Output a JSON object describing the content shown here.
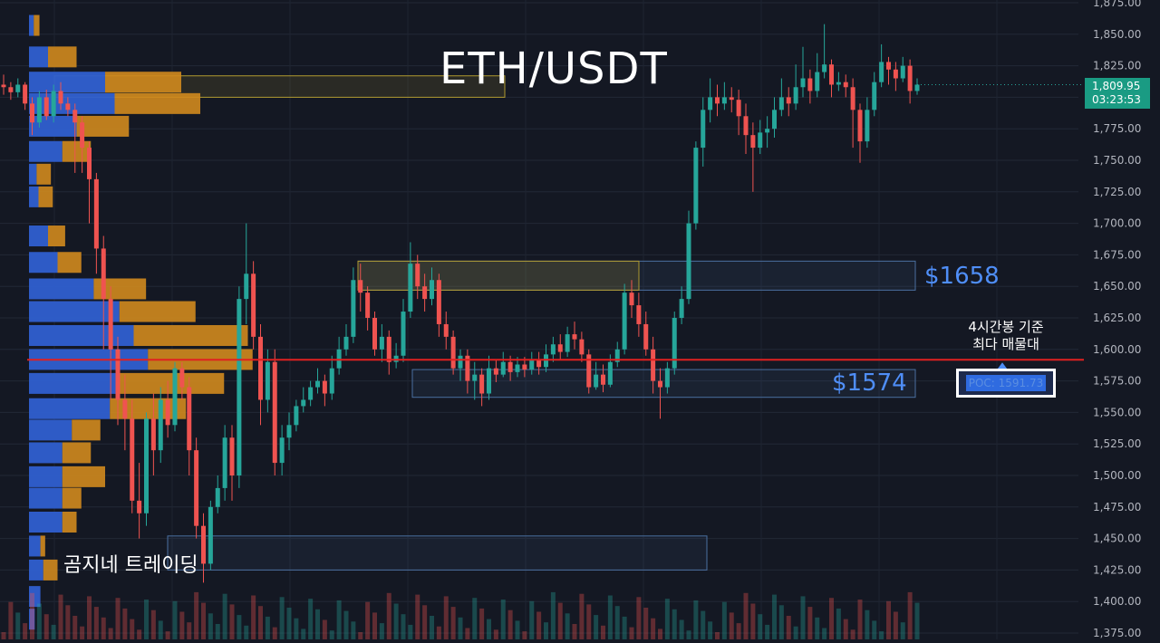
{
  "title": "ETH/USDT",
  "levels": {
    "upper_label": "$1658",
    "lower_label": "$1574"
  },
  "poc": {
    "note_line1": "4시간봉 기준",
    "note_line2": "최다 매물대",
    "label": "POC: 1591.73",
    "value": 1591.73
  },
  "watermark": "곰지네 트레이딩",
  "price_tag": {
    "price": "1,809.95",
    "countdown": "03:23:53"
  },
  "colors": {
    "background": "#141823",
    "up": "#26a69a",
    "down": "#ef5350",
    "poc_line": "#e02020",
    "profile_blue": "#2f5fd0",
    "profile_orange": "#d08a1e",
    "zone_blue": "#4a6fa0",
    "zone_yellow": "#b09a30",
    "level_text": "#4f8ef7"
  },
  "chart_data": {
    "type": "candlestick",
    "symbol": "ETH/USDT",
    "y_axis": {
      "range": [
        1375,
        1875
      ],
      "ticks": [
        "1,375.00",
        "1,400.00",
        "1,425.00",
        "1,450.00",
        "1,475.00",
        "1,500.00",
        "1,525.00",
        "1,550.00",
        "1,575.00",
        "1,600.00",
        "1,625.00",
        "1,650.00",
        "1,675.00",
        "1,700.00",
        "1,725.00",
        "1,750.00",
        "1,775.00",
        "1,800.00",
        "1,825.00",
        "1,850.00",
        "1,875.00"
      ],
      "tick_values": [
        1375,
        1400,
        1425,
        1450,
        1475,
        1500,
        1525,
        1550,
        1575,
        1600,
        1625,
        1650,
        1675,
        1700,
        1725,
        1750,
        1775,
        1800,
        1825,
        1850,
        1875
      ]
    },
    "last_price": 1809.95,
    "poc_price": 1591.73,
    "zones": [
      {
        "name": "upper",
        "low": 1647,
        "high": 1670,
        "color": "blue"
      },
      {
        "name": "upper-yellow",
        "low": 1647,
        "high": 1670,
        "color": "yellow"
      },
      {
        "name": "lower",
        "low": 1562,
        "high": 1584,
        "color": "blue"
      },
      {
        "name": "bottom",
        "low": 1425,
        "high": 1452,
        "color": "blue"
      },
      {
        "name": "top-left",
        "low": 1800,
        "high": 1817,
        "color": "yellow"
      }
    ],
    "volume_profile": [
      {
        "price": 1857,
        "buy": 5,
        "sell": 6
      },
      {
        "price": 1832,
        "buy": 20,
        "sell": 30
      },
      {
        "price": 1812,
        "buy": 80,
        "sell": 80
      },
      {
        "price": 1795,
        "buy": 90,
        "sell": 90
      },
      {
        "price": 1777,
        "buy": 50,
        "sell": 55
      },
      {
        "price": 1757,
        "buy": 35,
        "sell": 30
      },
      {
        "price": 1739,
        "buy": 8,
        "sell": 15
      },
      {
        "price": 1721,
        "buy": 10,
        "sell": 15
      },
      {
        "price": 1690,
        "buy": 20,
        "sell": 18
      },
      {
        "price": 1669,
        "buy": 30,
        "sell": 25
      },
      {
        "price": 1648,
        "buy": 68,
        "sell": 55
      },
      {
        "price": 1630,
        "buy": 95,
        "sell": 80
      },
      {
        "price": 1611,
        "buy": 110,
        "sell": 120
      },
      {
        "price": 1592,
        "buy": 125,
        "sell": 110
      },
      {
        "price": 1573,
        "buy": 95,
        "sell": 110
      },
      {
        "price": 1553,
        "buy": 85,
        "sell": 80
      },
      {
        "price": 1536,
        "buy": 45,
        "sell": 30
      },
      {
        "price": 1518,
        "buy": 35,
        "sell": 30
      },
      {
        "price": 1499,
        "buy": 35,
        "sell": 45
      },
      {
        "price": 1482,
        "buy": 35,
        "sell": 20
      },
      {
        "price": 1463,
        "buy": 35,
        "sell": 15
      },
      {
        "price": 1444,
        "buy": 12,
        "sell": 5
      },
      {
        "price": 1425,
        "buy": 15,
        "sell": 15
      },
      {
        "price": 1404,
        "buy": 12,
        "sell": 0
      },
      {
        "price": 1386,
        "buy": 6,
        "sell": 0
      }
    ],
    "candles": [
      [
        1810,
        1808,
        1818,
        1802
      ],
      [
        1808,
        1804,
        1812,
        1798
      ],
      [
        1804,
        1810,
        1815,
        1800
      ],
      [
        1810,
        1795,
        1812,
        1790
      ],
      [
        1795,
        1780,
        1800,
        1770
      ],
      [
        1780,
        1800,
        1805,
        1776
      ],
      [
        1800,
        1785,
        1806,
        1782
      ],
      [
        1785,
        1805,
        1810,
        1780
      ],
      [
        1805,
        1795,
        1812,
        1790
      ],
      [
        1795,
        1790,
        1800,
        1785
      ],
      [
        1790,
        1780,
        1795,
        1740
      ],
      [
        1780,
        1760,
        1785,
        1740
      ],
      [
        1760,
        1735,
        1765,
        1700
      ],
      [
        1735,
        1680,
        1740,
        1660
      ],
      [
        1680,
        1640,
        1690,
        1600
      ],
      [
        1640,
        1600,
        1650,
        1560
      ],
      [
        1600,
        1560,
        1610,
        1540
      ],
      [
        1560,
        1545,
        1580,
        1520
      ],
      [
        1545,
        1480,
        1560,
        1470
      ],
      [
        1480,
        1470,
        1510,
        1450
      ],
      [
        1470,
        1545,
        1550,
        1460
      ],
      [
        1545,
        1520,
        1565,
        1500
      ],
      [
        1520,
        1560,
        1570,
        1510
      ],
      [
        1560,
        1540,
        1575,
        1530
      ],
      [
        1540,
        1585,
        1590,
        1535
      ],
      [
        1585,
        1570,
        1590,
        1560
      ],
      [
        1570,
        1520,
        1578,
        1500
      ],
      [
        1520,
        1460,
        1530,
        1450
      ],
      [
        1460,
        1430,
        1470,
        1415
      ],
      [
        1430,
        1475,
        1480,
        1425
      ],
      [
        1475,
        1490,
        1500,
        1470
      ],
      [
        1490,
        1530,
        1540,
        1480
      ],
      [
        1530,
        1500,
        1540,
        1480
      ],
      [
        1500,
        1640,
        1650,
        1490
      ],
      [
        1640,
        1660,
        1700,
        1620
      ],
      [
        1660,
        1610,
        1670,
        1600
      ],
      [
        1610,
        1560,
        1620,
        1540
      ],
      [
        1560,
        1590,
        1600,
        1550
      ],
      [
        1590,
        1510,
        1600,
        1500
      ],
      [
        1510,
        1530,
        1540,
        1500
      ],
      [
        1530,
        1540,
        1550,
        1520
      ],
      [
        1540,
        1555,
        1560,
        1535
      ],
      [
        1555,
        1560,
        1570,
        1550
      ],
      [
        1560,
        1570,
        1575,
        1555
      ],
      [
        1570,
        1575,
        1585,
        1565
      ],
      [
        1575,
        1565,
        1580,
        1555
      ],
      [
        1565,
        1585,
        1595,
        1560
      ],
      [
        1585,
        1600,
        1610,
        1580
      ],
      [
        1600,
        1610,
        1620,
        1595
      ],
      [
        1610,
        1655,
        1665,
        1605
      ],
      [
        1655,
        1645,
        1668,
        1630
      ],
      [
        1645,
        1625,
        1650,
        1615
      ],
      [
        1625,
        1600,
        1630,
        1595
      ],
      [
        1600,
        1610,
        1620,
        1590
      ],
      [
        1610,
        1590,
        1615,
        1580
      ],
      [
        1590,
        1595,
        1605,
        1585
      ],
      [
        1595,
        1630,
        1640,
        1590
      ],
      [
        1630,
        1668,
        1685,
        1625
      ],
      [
        1668,
        1650,
        1675,
        1640
      ],
      [
        1650,
        1640,
        1660,
        1630
      ],
      [
        1640,
        1655,
        1665,
        1635
      ],
      [
        1655,
        1620,
        1660,
        1610
      ],
      [
        1620,
        1610,
        1630,
        1600
      ],
      [
        1610,
        1585,
        1615,
        1580
      ],
      [
        1585,
        1595,
        1600,
        1575
      ],
      [
        1595,
        1575,
        1600,
        1565
      ],
      [
        1575,
        1580,
        1590,
        1560
      ],
      [
        1580,
        1565,
        1585,
        1555
      ],
      [
        1565,
        1585,
        1595,
        1560
      ],
      [
        1585,
        1580,
        1592,
        1574
      ],
      [
        1580,
        1590,
        1598,
        1578
      ],
      [
        1590,
        1582,
        1595,
        1575
      ],
      [
        1582,
        1588,
        1594,
        1578
      ],
      [
        1588,
        1584,
        1594,
        1578
      ],
      [
        1584,
        1592,
        1598,
        1580
      ],
      [
        1592,
        1586,
        1598,
        1580
      ],
      [
        1586,
        1596,
        1604,
        1582
      ],
      [
        1596,
        1604,
        1610,
        1590
      ],
      [
        1604,
        1598,
        1612,
        1592
      ],
      [
        1598,
        1612,
        1618,
        1594
      ],
      [
        1612,
        1608,
        1622,
        1600
      ],
      [
        1608,
        1596,
        1614,
        1590
      ],
      [
        1596,
        1570,
        1600,
        1565
      ],
      [
        1570,
        1580,
        1590,
        1568
      ],
      [
        1580,
        1572,
        1588,
        1566
      ],
      [
        1572,
        1590,
        1596,
        1570
      ],
      [
        1590,
        1600,
        1606,
        1586
      ],
      [
        1600,
        1645,
        1652,
        1596
      ],
      [
        1645,
        1635,
        1655,
        1625
      ],
      [
        1635,
        1620,
        1645,
        1610
      ],
      [
        1620,
        1600,
        1630,
        1595
      ],
      [
        1600,
        1575,
        1610,
        1565
      ],
      [
        1575,
        1570,
        1585,
        1545
      ],
      [
        1570,
        1585,
        1590,
        1565
      ],
      [
        1585,
        1625,
        1630,
        1580
      ],
      [
        1625,
        1640,
        1650,
        1620
      ],
      [
        1640,
        1700,
        1710,
        1636
      ],
      [
        1700,
        1760,
        1765,
        1695
      ],
      [
        1760,
        1790,
        1800,
        1745
      ],
      [
        1790,
        1800,
        1815,
        1780
      ],
      [
        1800,
        1795,
        1810,
        1785
      ],
      [
        1795,
        1800,
        1812,
        1790
      ],
      [
        1800,
        1798,
        1808,
        1788
      ],
      [
        1798,
        1785,
        1806,
        1770
      ],
      [
        1785,
        1770,
        1795,
        1755
      ],
      [
        1770,
        1760,
        1780,
        1725
      ],
      [
        1760,
        1772,
        1782,
        1755
      ],
      [
        1772,
        1775,
        1785,
        1760
      ],
      [
        1775,
        1790,
        1800,
        1768
      ],
      [
        1790,
        1800,
        1815,
        1785
      ],
      [
        1800,
        1795,
        1808,
        1785
      ],
      [
        1795,
        1808,
        1826,
        1790
      ],
      [
        1808,
        1815,
        1840,
        1800
      ],
      [
        1815,
        1805,
        1822,
        1795
      ],
      [
        1805,
        1820,
        1835,
        1800
      ],
      [
        1820,
        1826,
        1858,
        1815
      ],
      [
        1826,
        1810,
        1830,
        1800
      ],
      [
        1810,
        1812,
        1820,
        1805
      ],
      [
        1812,
        1808,
        1818,
        1800
      ],
      [
        1808,
        1790,
        1815,
        1760
      ],
      [
        1790,
        1765,
        1795,
        1748
      ],
      [
        1765,
        1790,
        1800,
        1760
      ],
      [
        1790,
        1812,
        1820,
        1785
      ],
      [
        1812,
        1828,
        1842,
        1808
      ],
      [
        1828,
        1822,
        1832,
        1810
      ],
      [
        1822,
        1815,
        1828,
        1805
      ],
      [
        1815,
        1825,
        1832,
        1812
      ],
      [
        1825,
        1805,
        1830,
        1795
      ],
      [
        1805,
        1810,
        1815,
        1802
      ]
    ]
  }
}
